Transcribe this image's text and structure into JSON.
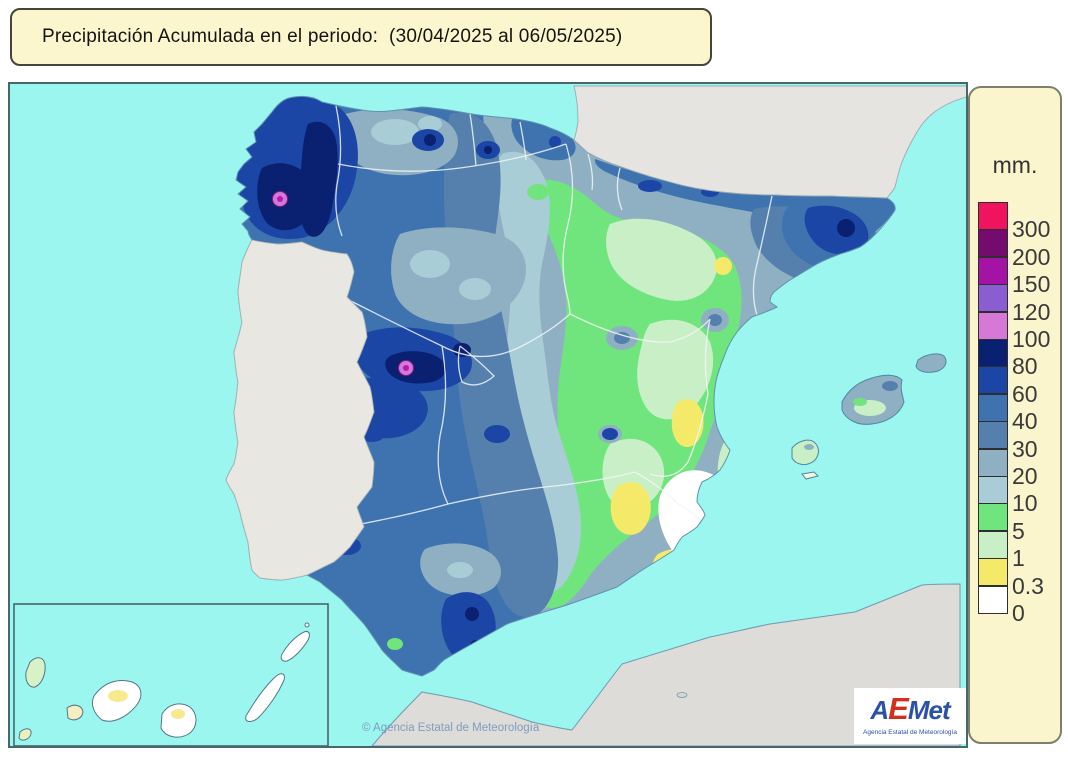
{
  "title": {
    "text": "Precipitación Acumulada en el periodo:  (30/04/2025 al 06/05/2025)"
  },
  "legend": {
    "unit_label": "mm.",
    "bands": [
      {
        "label": "300",
        "color": "#F0135E"
      },
      {
        "label": "200",
        "color": "#730C6C"
      },
      {
        "label": "150",
        "color": "#A414A4"
      },
      {
        "label": "120",
        "color": "#8A5ED0"
      },
      {
        "label": "100",
        "color": "#D678D6"
      },
      {
        "label": "80",
        "color": "#0A2070"
      },
      {
        "label": "60",
        "color": "#1C46A6"
      },
      {
        "label": "40",
        "color": "#3E73B0"
      },
      {
        "label": "30",
        "color": "#5580AE"
      },
      {
        "label": "20",
        "color": "#8FB0C2"
      },
      {
        "label": "10",
        "color": "#A8CDD6"
      },
      {
        "label": "5",
        "color": "#70E57E"
      },
      {
        "label": "1",
        "color": "#C8EFC6"
      },
      {
        "label": "0.3",
        "color": "#F5E96A"
      },
      {
        "label": "0",
        "color": "#FFFFFF"
      }
    ]
  },
  "map": {
    "copyright": "© Agencia Estatal de Meteorología",
    "sea_color": "#9AF6EE",
    "no_data_land_color": "#E6E4E0",
    "frame_border_color": "#46686B",
    "title_box_color": "#FBF6CE",
    "legend_box_color": "#FAF5CD"
  },
  "logo": {
    "letters": [
      {
        "ch": "A",
        "color": "#2B52A8"
      },
      {
        "ch": "E",
        "color": "#D2301E"
      },
      {
        "ch": "M",
        "color": "#2B52A8"
      },
      {
        "ch": "e",
        "color": "#2B52A8"
      },
      {
        "ch": "t",
        "color": "#2B52A8"
      }
    ],
    "subtitle": "Agencia Estatal de Meteorología"
  }
}
